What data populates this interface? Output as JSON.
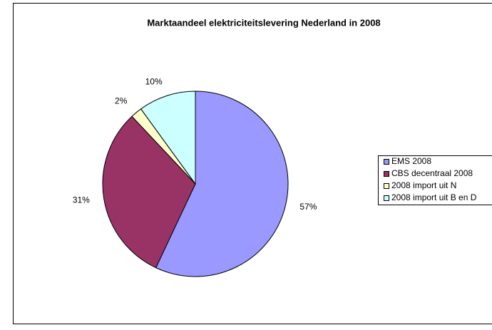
{
  "chart_data": {
    "type": "pie",
    "title": "Marktaandeel elektriciteitslevering Nederland in 2008",
    "categories": [
      "EMS 2008",
      "CBS decentraal 2008",
      "2008 import uit N",
      "2008 import uit B en D"
    ],
    "values": [
      57,
      31,
      2,
      10
    ],
    "value_labels": [
      "57%",
      "31%",
      "2%",
      "10%"
    ],
    "colors": [
      "#9999ff",
      "#993366",
      "#ffffcc",
      "#ccffff"
    ],
    "legend": "right"
  }
}
